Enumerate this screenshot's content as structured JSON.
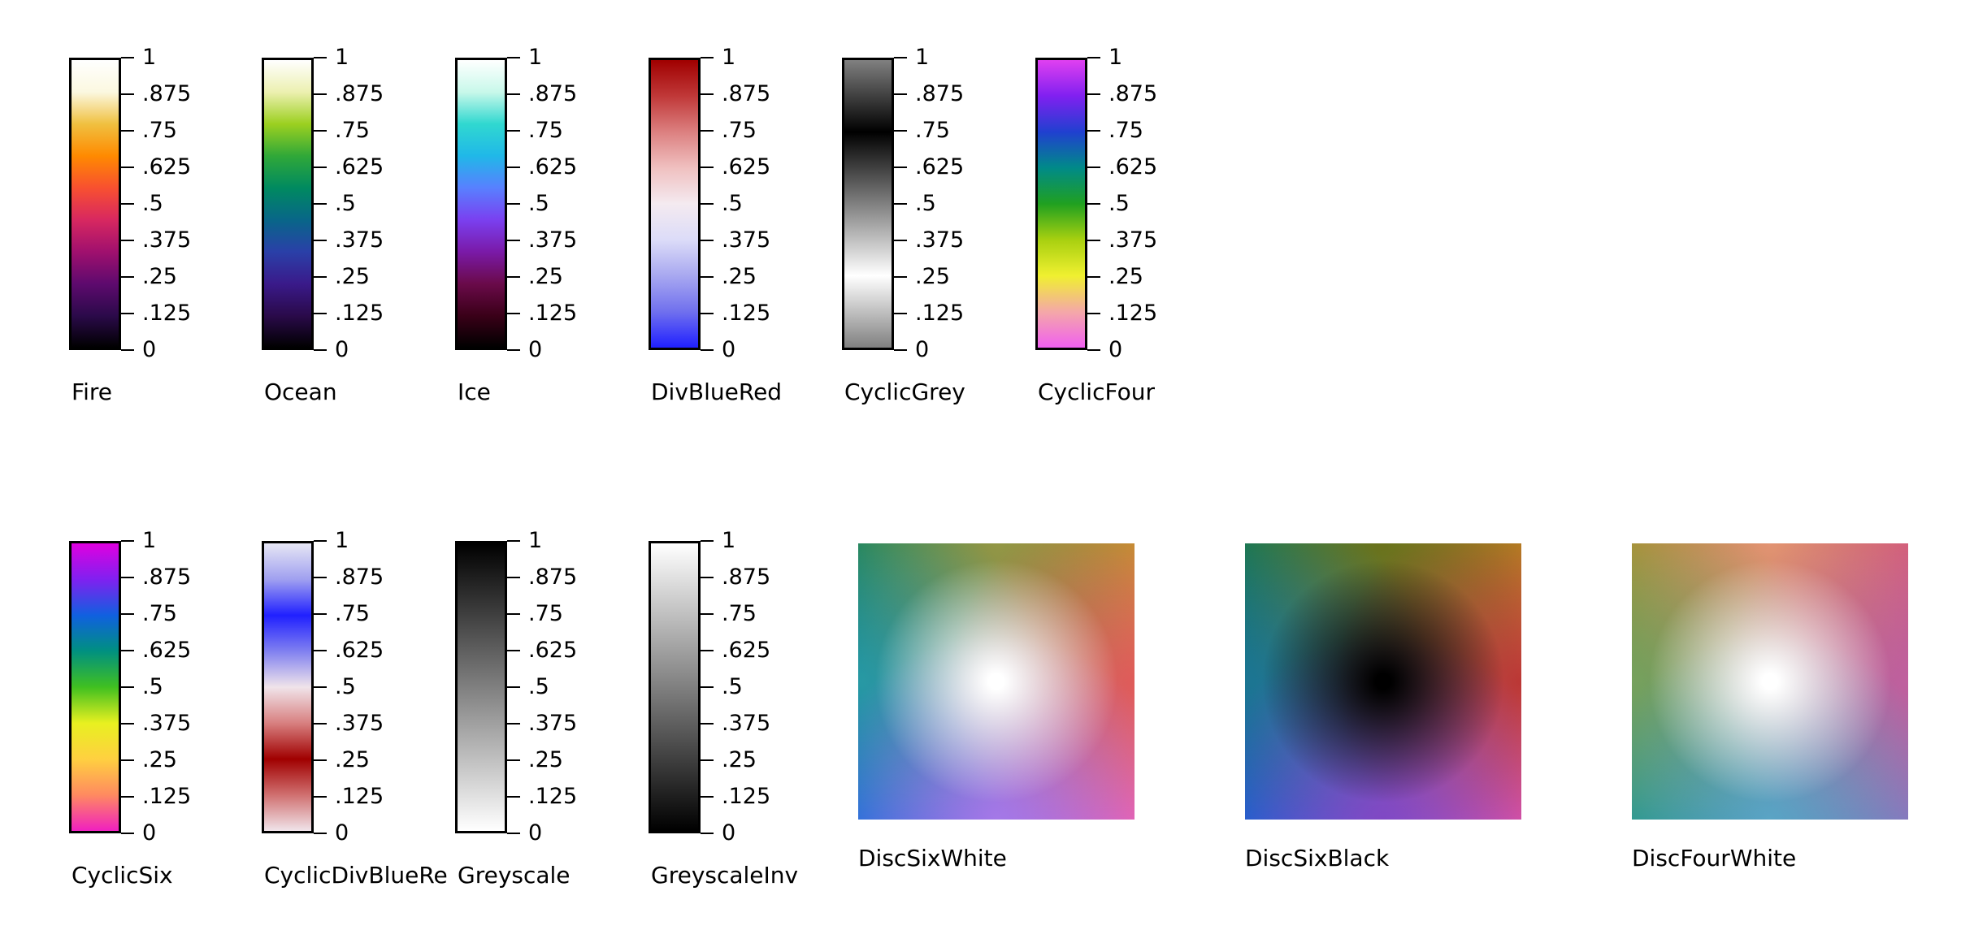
{
  "chart_data": [
    {
      "type": "heatmap",
      "name": "Fire",
      "ticks": [
        "0",
        ".125",
        ".25",
        ".375",
        ".5",
        ".625",
        ".75",
        ".875",
        "1"
      ],
      "colors": [
        "#000000",
        "#2b0a4a",
        "#5e0a6e",
        "#a0106e",
        "#d82860",
        "#f85030",
        "#ff8a00",
        "#f0c040",
        "#fbf8e0",
        "#ffffff"
      ]
    },
    {
      "type": "heatmap",
      "name": "Ocean",
      "ticks": [
        "0",
        ".125",
        ".25",
        ".375",
        ".5",
        ".625",
        ".75",
        ".875",
        "1"
      ],
      "colors": [
        "#000000",
        "#2a0a4a",
        "#3a1a8a",
        "#2a40a8",
        "#086688",
        "#008a60",
        "#30a838",
        "#9cd020",
        "#ecf0b0",
        "#ffffff"
      ]
    },
    {
      "type": "heatmap",
      "name": "Ice",
      "ticks": [
        "0",
        ".125",
        ".25",
        ".375",
        ".5",
        ".625",
        ".75",
        ".875",
        "1"
      ],
      "colors": [
        "#000000",
        "#3a0018",
        "#6a0a4a",
        "#7a1aa8",
        "#7a40f0",
        "#5880ff",
        "#20b8e8",
        "#30d8d0",
        "#c8f8ea",
        "#ffffff"
      ]
    },
    {
      "type": "heatmap",
      "name": "DivBlueRed",
      "ticks": [
        "0",
        ".125",
        ".25",
        ".375",
        ".5",
        ".625",
        ".75",
        ".875",
        "1"
      ],
      "colors": [
        "#2020ff",
        "#7070ee",
        "#a8a8f0",
        "#dcdcf8",
        "#f4eaf0",
        "#f0c0c0",
        "#dc8080",
        "#c03838",
        "#a00000"
      ]
    },
    {
      "type": "heatmap",
      "name": "CyclicGrey",
      "ticks": [
        "0",
        ".125",
        ".25",
        ".375",
        ".5",
        ".625",
        ".75",
        ".875",
        "1"
      ],
      "colors": [
        "#808080",
        "#c0c0c0",
        "#ffffff",
        "#c0c0c0",
        "#808080",
        "#404040",
        "#000000",
        "#404040",
        "#808080"
      ]
    },
    {
      "type": "heatmap",
      "name": "CyclicFour",
      "ticks": [
        "0",
        ".125",
        ".25",
        ".375",
        ".5",
        ".625",
        ".75",
        ".875",
        "1"
      ],
      "colors": [
        "#f060f0",
        "#f4a8a8",
        "#f0f030",
        "#a8d010",
        "#20a020",
        "#008a88",
        "#2040d0",
        "#8020f0",
        "#e040f0"
      ]
    },
    {
      "type": "heatmap",
      "name": "CyclicSix",
      "ticks": [
        "0",
        ".125",
        ".25",
        ".375",
        ".5",
        ".625",
        ".75",
        ".875",
        "1"
      ],
      "colors": [
        "#f020c0",
        "#ff8a60",
        "#ffd040",
        "#e8f020",
        "#40c020",
        "#009080",
        "#1060e0",
        "#8020f0",
        "#e000e0"
      ]
    },
    {
      "type": "heatmap",
      "name": "CyclicDivBlueRe",
      "ticks": [
        "0",
        ".125",
        ".25",
        ".375",
        ".5",
        ".625",
        ".75",
        ".875",
        "1"
      ],
      "colors": [
        "#f0e4ea",
        "#d07070",
        "#a00000",
        "#d88080",
        "#f0e4ea",
        "#8080f0",
        "#2020ff",
        "#a0a0f0",
        "#e6e6f4"
      ]
    },
    {
      "type": "heatmap",
      "name": "Greyscale",
      "ticks": [
        "0",
        ".125",
        ".25",
        ".375",
        ".5",
        ".625",
        ".75",
        ".875",
        "1"
      ],
      "colors": [
        "#ffffff",
        "#000000"
      ]
    },
    {
      "type": "heatmap",
      "name": "GreyscaleInv",
      "ticks": [
        "0",
        ".125",
        ".25",
        ".375",
        ".5",
        ".625",
        ".75",
        ".875",
        "1"
      ],
      "colors": [
        "#000000",
        "#ffffff"
      ]
    },
    {
      "type": "heatmap",
      "name": "DiscSixWhite",
      "center": "#ffffff",
      "corners": {
        "tl": "#0a7a50",
        "tr": "#c89a28",
        "bl": "#1060e0",
        "br": "#f060c0"
      },
      "edges": {
        "top": "#a09a48",
        "left": "#30a8a8",
        "right": "#e05050",
        "bottom": "#b080f0"
      }
    },
    {
      "type": "heatmap",
      "name": "DiscSixBlack",
      "center": "#000000",
      "corners": {
        "tl": "#0a7a50",
        "tr": "#c89a28",
        "bl": "#1060e0",
        "br": "#f060c0"
      },
      "edges": {
        "top": "#6a6a10",
        "left": "#207890",
        "right": "#b02020",
        "bottom": "#8040c0"
      }
    },
    {
      "type": "heatmap",
      "name": "DiscFourWhite",
      "center": "#ffffff",
      "corners": {
        "tl": "#a08a20",
        "tr": "#d05070",
        "bl": "#10908a",
        "br": "#8070c0"
      },
      "edges": {
        "top": "#f0a080",
        "left": "#80a860",
        "right": "#c860a0",
        "bottom": "#60b0d0"
      }
    }
  ]
}
